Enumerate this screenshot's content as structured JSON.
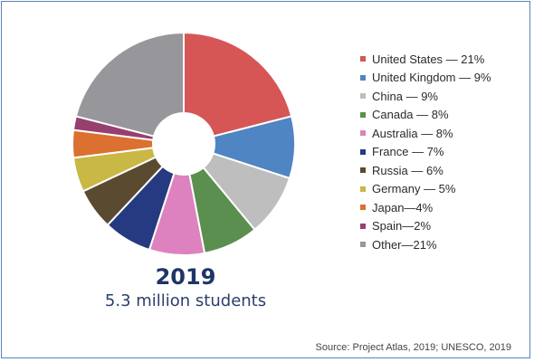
{
  "chart_data": {
    "type": "pie",
    "title": "2019",
    "subtitle": "5.3 million students",
    "source": "Source: Project Atlas, 2019; UNESCO, 2019",
    "slices": [
      {
        "label": "United States — 21%",
        "value": 21,
        "color": "#d65656"
      },
      {
        "label": "United Kingdom — 9%",
        "value": 9,
        "color": "#4f85c2"
      },
      {
        "label": "China — 9%",
        "value": 9,
        "color": "#bebebe"
      },
      {
        "label": "Canada — 8%",
        "value": 8,
        "color": "#5b8f4f"
      },
      {
        "label": "Australia — 8%",
        "value": 8,
        "color": "#dd82bf"
      },
      {
        "label": "France — 7%",
        "value": 7,
        "color": "#253a80"
      },
      {
        "label": "Russia — 6%",
        "value": 6,
        "color": "#5a4a30"
      },
      {
        "label": "Germany — 5%",
        "value": 5,
        "color": "#c9b845"
      },
      {
        "label": "Japan—4%",
        "value": 4,
        "color": "#db7030"
      },
      {
        "label": "Spain—2%",
        "value": 2,
        "color": "#973f6e"
      },
      {
        "label": "Other—21%",
        "value": 21,
        "color": "#97979b"
      }
    ]
  }
}
